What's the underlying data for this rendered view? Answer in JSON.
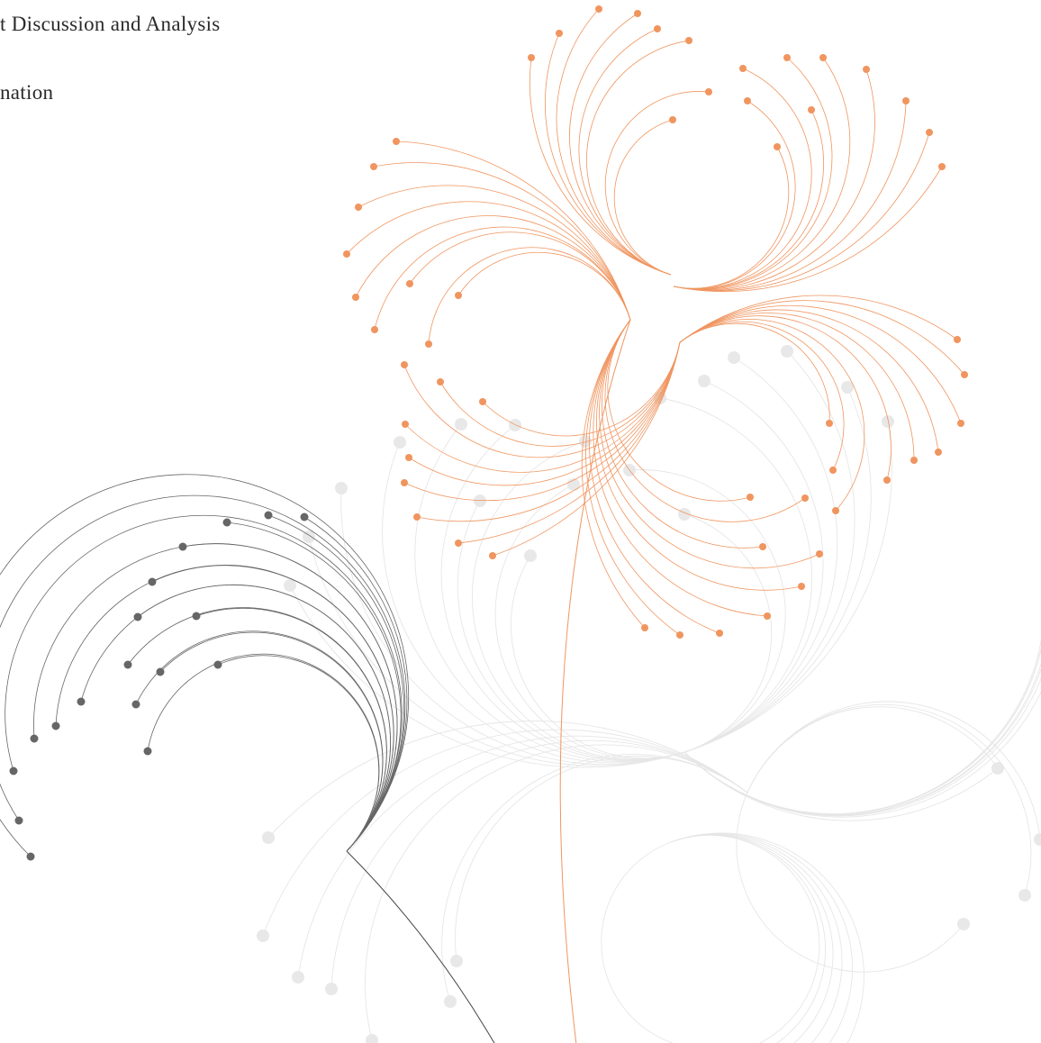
{
  "header": {
    "lines": [
      "t Discussion and Analysis",
      "nation"
    ]
  }
}
